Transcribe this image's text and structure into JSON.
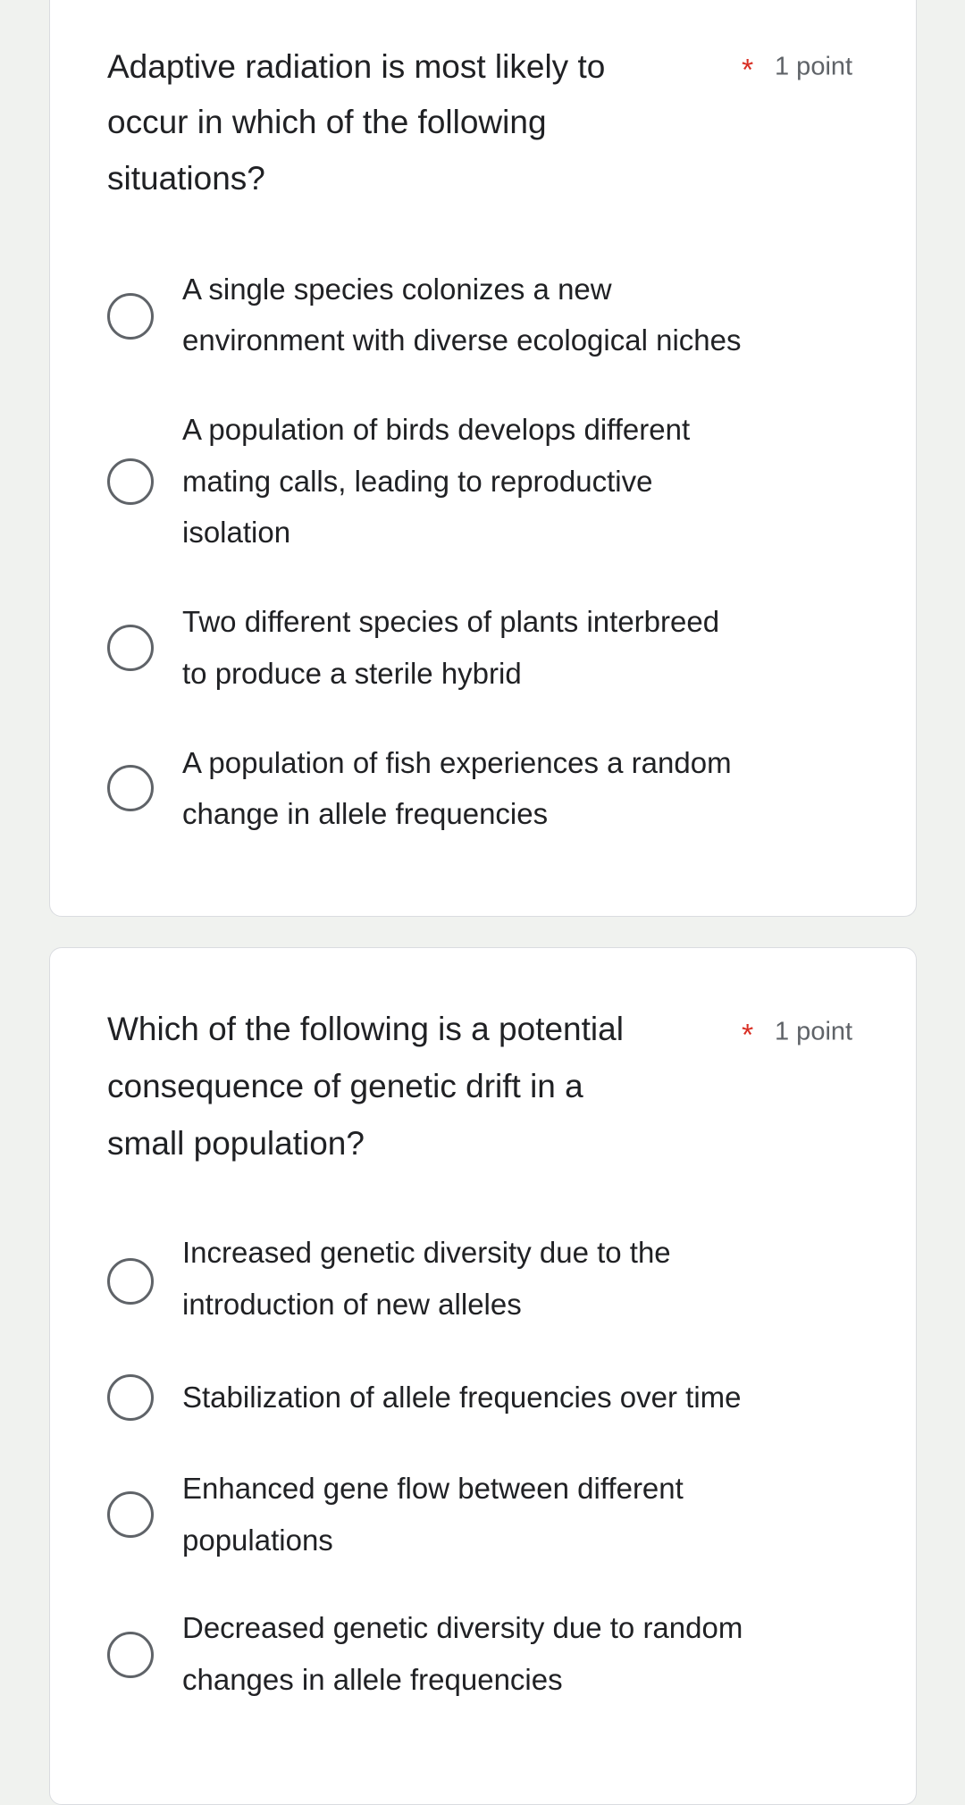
{
  "questions": [
    {
      "lines": [
        "Adaptive radiation is most likely to",
        "occur in which of the following",
        "situations?"
      ],
      "required_mark": "*",
      "points": "1 point",
      "options": [
        {
          "lines": [
            "A single species colonizes a new",
            "environment with diverse ecological niches"
          ],
          "selected": false
        },
        {
          "lines": [
            "A population of birds develops different",
            "mating calls, leading to reproductive",
            "isolation"
          ],
          "selected": false
        },
        {
          "lines": [
            "Two different species of plants interbreed",
            "to produce a sterile hybrid"
          ],
          "selected": false
        },
        {
          "lines": [
            "A population of fish experiences a random",
            "change in allele frequencies"
          ],
          "selected": false
        }
      ]
    },
    {
      "lines": [
        "Which of the following is a potential",
        "consequence of genetic drift in a",
        "small population?"
      ],
      "required_mark": "*",
      "points": "1 point",
      "options": [
        {
          "lines": [
            "Increased genetic diversity due to the",
            "introduction of new alleles"
          ],
          "selected": false
        },
        {
          "lines": [
            "Stabilization of allele frequencies over time"
          ],
          "selected": false
        },
        {
          "lines": [
            "Enhanced gene flow between different",
            "populations"
          ],
          "selected": false
        },
        {
          "lines": [
            "Decreased genetic diversity due to random",
            "changes in allele frequencies"
          ],
          "selected": false
        }
      ]
    }
  ]
}
